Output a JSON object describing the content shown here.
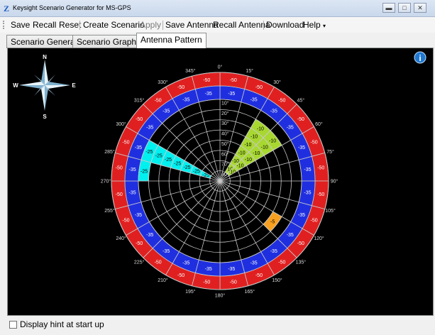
{
  "window": {
    "title": "Keysight Scenario Generator for MS-GPS",
    "icon": "z-logo-icon"
  },
  "window_controls": [
    {
      "name": "minimize-button",
      "glyph": "▬"
    },
    {
      "name": "maximize-button",
      "glyph": "□"
    },
    {
      "name": "close-button",
      "glyph": "✕"
    }
  ],
  "menu": [
    {
      "label": "Save",
      "enabled": true
    },
    {
      "label": "Recall",
      "enabled": true
    },
    {
      "label": "Reset",
      "enabled": true
    },
    {
      "label": "Create Scenario",
      "enabled": true
    },
    {
      "label": "Apply",
      "enabled": false
    },
    {
      "label": "Save Antenna",
      "enabled": true
    },
    {
      "label": "Recall Antenna",
      "enabled": true
    },
    {
      "label": "Download",
      "enabled": true
    },
    {
      "label": "Help",
      "enabled": true
    }
  ],
  "tabs": [
    {
      "label": "Scenario Generator",
      "active": false
    },
    {
      "label": "Scenario Graphics",
      "active": false
    },
    {
      "label": "Antenna Pattern",
      "active": true
    }
  ],
  "compass": {
    "n": "N",
    "s": "S",
    "e": "E",
    "w": "W",
    "icon": "compass-rose-icon"
  },
  "info_icon": "info-icon",
  "antenna_pattern": {
    "azimuth_step_deg": 15,
    "elevation_step_deg": 10,
    "azimuth_labels": [
      "0°",
      "15°",
      "30°",
      "45°",
      "60°",
      "75°",
      "90°",
      "105°",
      "120°",
      "135°",
      "150°",
      "165°",
      "180°",
      "195°",
      "210°",
      "225°",
      "240°",
      "255°",
      "270°",
      "285°",
      "300°",
      "315°",
      "330°",
      "345°"
    ],
    "elevation_labels": [
      "10°",
      "20°",
      "30°",
      "40°",
      "50°",
      "60°",
      "70°",
      "80°"
    ],
    "colors": {
      "-50": "#e02020",
      "-35": "#1f2fe0",
      "-25": "#00f0f0",
      "-10": "#a8d830",
      "-5": "#f8a020",
      "grid": "#c8c8c8",
      "background": "#000000"
    },
    "cells": [
      {
        "az_start": 270,
        "az_end": 285,
        "el_start": 10,
        "el_end": 20,
        "value": "-25"
      },
      {
        "az_start": 285,
        "az_end": 300,
        "el_start": 10,
        "el_end": 20,
        "value": "-25"
      },
      {
        "az_start": 285,
        "az_end": 300,
        "el_start": 20,
        "el_end": 30,
        "value": "-25"
      },
      {
        "az_start": 285,
        "az_end": 300,
        "el_start": 30,
        "el_end": 40,
        "value": "-25"
      },
      {
        "az_start": 285,
        "az_end": 300,
        "el_start": 40,
        "el_end": 50,
        "value": "-25"
      },
      {
        "az_start": 285,
        "az_end": 300,
        "el_start": 50,
        "el_end": 60,
        "value": "-25"
      },
      {
        "az_start": 285,
        "az_end": 300,
        "el_start": 60,
        "el_end": 70,
        "value": "-25"
      },
      {
        "az_start": 285,
        "az_end": 300,
        "el_start": 70,
        "el_end": 80,
        "value": "-25"
      },
      {
        "az_start": 30,
        "az_end": 45,
        "el_start": 20,
        "el_end": 30,
        "value": "-10"
      },
      {
        "az_start": 30,
        "az_end": 45,
        "el_start": 30,
        "el_end": 40,
        "value": "-10"
      },
      {
        "az_start": 30,
        "az_end": 45,
        "el_start": 40,
        "el_end": 50,
        "value": "-10"
      },
      {
        "az_start": 30,
        "az_end": 45,
        "el_start": 50,
        "el_end": 60,
        "value": "-10"
      },
      {
        "az_start": 30,
        "az_end": 45,
        "el_start": 60,
        "el_end": 70,
        "value": "-10"
      },
      {
        "az_start": 30,
        "az_end": 45,
        "el_start": 70,
        "el_end": 80,
        "value": "-10"
      },
      {
        "az_start": 45,
        "az_end": 60,
        "el_start": 20,
        "el_end": 30,
        "value": "-10"
      },
      {
        "az_start": 45,
        "az_end": 60,
        "el_start": 30,
        "el_end": 40,
        "value": "-10"
      },
      {
        "az_start": 45,
        "az_end": 60,
        "el_start": 40,
        "el_end": 50,
        "value": "-10"
      },
      {
        "az_start": 45,
        "az_end": 60,
        "el_start": 50,
        "el_end": 60,
        "value": "-10"
      },
      {
        "az_start": 45,
        "az_end": 60,
        "el_start": 60,
        "el_end": 70,
        "value": "-10"
      },
      {
        "az_start": 45,
        "az_end": 60,
        "el_start": 70,
        "el_end": 80,
        "value": "-10"
      },
      {
        "az_start": 120,
        "az_end": 135,
        "el_start": 20,
        "el_end": 30,
        "value": "-5"
      }
    ],
    "ring_outer_value": "-50",
    "ring_inner_value": "-35"
  },
  "footer": {
    "hint_label": "Display hint at start up",
    "hint_checked": false
  }
}
